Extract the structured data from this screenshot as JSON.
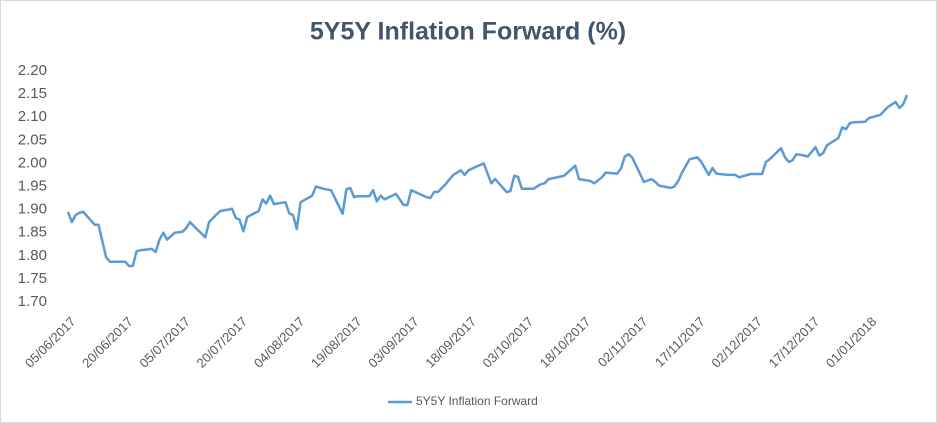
{
  "chart_data": {
    "type": "line",
    "title": "5Y5Y Inflation Forward (%)",
    "x": [
      "05/06/2017",
      "06/06/2017",
      "07/06/2017",
      "08/06/2017",
      "09/06/2017",
      "12/06/2017",
      "13/06/2017",
      "15/06/2017",
      "16/06/2017",
      "20/06/2017",
      "21/06/2017",
      "22/06/2017",
      "23/06/2017",
      "24/06/2017",
      "27/06/2017",
      "28/06/2017",
      "29/06/2017",
      "30/06/2017",
      "01/07/2017",
      "03/07/2017",
      "05/07/2017",
      "06/07/2017",
      "07/07/2017",
      "09/07/2017",
      "11/07/2017",
      "12/07/2017",
      "14/07/2017",
      "15/07/2017",
      "17/07/2017",
      "18/07/2017",
      "19/07/2017",
      "20/07/2017",
      "21/07/2017",
      "22/07/2017",
      "25/07/2017",
      "26/07/2017",
      "27/07/2017",
      "28/07/2017",
      "29/07/2017",
      "01/08/2017",
      "02/08/2017",
      "03/08/2017",
      "04/08/2017",
      "05/08/2017",
      "08/08/2017",
      "09/08/2017",
      "11/08/2017",
      "13/08/2017",
      "16/08/2017",
      "17/08/2017",
      "18/08/2017",
      "19/08/2017",
      "20/08/2017",
      "23/08/2017",
      "24/08/2017",
      "25/08/2017",
      "26/08/2017",
      "27/08/2017",
      "30/08/2017",
      "01/09/2017",
      "02/09/2017",
      "03/09/2017",
      "07/09/2017",
      "08/09/2017",
      "09/09/2017",
      "10/09/2017",
      "12/09/2017",
      "14/09/2017",
      "16/09/2017",
      "17/09/2017",
      "18/09/2017",
      "22/09/2017",
      "24/09/2017",
      "25/09/2017",
      "28/09/2017",
      "29/09/2017",
      "30/09/2017",
      "01/10/2017",
      "02/10/2017",
      "05/10/2017",
      "07/10/2017",
      "08/10/2017",
      "09/10/2017",
      "13/10/2017",
      "14/10/2017",
      "16/10/2017",
      "17/10/2017",
      "20/10/2017",
      "21/10/2017",
      "23/10/2017",
      "24/10/2017",
      "27/10/2017",
      "28/10/2017",
      "29/10/2017",
      "30/10/2017",
      "31/10/2017",
      "03/11/2017",
      "05/11/2017",
      "06/11/2017",
      "07/11/2017",
      "10/11/2017",
      "11/11/2017",
      "12/11/2017",
      "13/11/2017",
      "15/11/2017",
      "17/11/2017",
      "18/11/2017",
      "20/11/2017",
      "21/11/2017",
      "22/11/2017",
      "25/11/2017",
      "27/11/2017",
      "28/11/2017",
      "01/12/2017",
      "04/12/2017",
      "05/12/2017",
      "06/12/2017",
      "09/12/2017",
      "10/12/2017",
      "11/12/2017",
      "12/12/2017",
      "13/12/2017",
      "15/12/2017",
      "16/12/2017",
      "18/12/2017",
      "19/12/2017",
      "20/12/2017",
      "21/12/2017",
      "24/12/2017",
      "25/12/2017",
      "26/12/2017",
      "27/12/2017",
      "28/12/2017",
      "31/12/2017",
      "01/01/2018",
      "04/01/2018",
      "06/01/2018",
      "08/01/2018",
      "09/01/2018",
      "10/01/2018",
      "11/01/2018"
    ],
    "series": [
      {
        "name": "5Y5Y Inflation Forward",
        "color": "#5b9bd5",
        "values": [
          1.895,
          1.873,
          1.888,
          1.893,
          1.895,
          1.867,
          1.867,
          1.797,
          1.787,
          1.787,
          1.778,
          1.778,
          1.81,
          1.812,
          1.815,
          1.808,
          1.835,
          1.85,
          1.835,
          1.85,
          1.852,
          1.86,
          1.873,
          1.856,
          1.84,
          1.873,
          1.89,
          1.897,
          1.9,
          1.902,
          1.882,
          1.878,
          1.853,
          1.884,
          1.897,
          1.922,
          1.913,
          1.93,
          1.912,
          1.916,
          1.892,
          1.888,
          1.858,
          1.916,
          1.93,
          1.95,
          1.945,
          1.942,
          1.891,
          1.944,
          1.947,
          1.927,
          1.929,
          1.929,
          1.942,
          1.918,
          1.93,
          1.922,
          1.934,
          1.91,
          1.91,
          1.942,
          1.927,
          1.925,
          1.938,
          1.938,
          1.955,
          1.975,
          1.985,
          1.975,
          1.985,
          2.0,
          1.957,
          1.966,
          1.938,
          1.94,
          1.973,
          1.971,
          1.945,
          1.945,
          1.955,
          1.957,
          1.966,
          1.973,
          1.98,
          1.995,
          1.966,
          1.962,
          1.957,
          1.97,
          1.98,
          1.978,
          1.989,
          2.015,
          2.02,
          2.012,
          1.96,
          1.966,
          1.96,
          1.952,
          1.947,
          1.95,
          1.962,
          1.98,
          2.009,
          2.013,
          2.004,
          1.975,
          1.99,
          1.978,
          1.975,
          1.975,
          1.97,
          1.977,
          1.977,
          2.003,
          2.009,
          2.033,
          2.013,
          2.003,
          2.007,
          2.02,
          2.017,
          2.015,
          2.035,
          2.017,
          2.022,
          2.039,
          2.055,
          2.078,
          2.074,
          2.087,
          2.089,
          2.09,
          2.098,
          2.105,
          2.122,
          2.133,
          2.12,
          2.128,
          2.148
        ]
      }
    ],
    "xlim": [
      "05/06/2017",
      "11/01/2018"
    ],
    "xticks": [
      "05/06/2017",
      "20/06/2017",
      "05/07/2017",
      "20/07/2017",
      "04/08/2017",
      "19/08/2017",
      "03/09/2017",
      "18/09/2017",
      "03/10/2017",
      "18/10/2017",
      "02/11/2017",
      "17/11/2017",
      "02/12/2017",
      "17/12/2017",
      "01/01/2018"
    ],
    "ylim": [
      1.7,
      2.2
    ],
    "yticks": [
      {
        "value": 1.7,
        "label": "1.70"
      },
      {
        "value": 1.75,
        "label": "1.75"
      },
      {
        "value": 1.8,
        "label": "1.80"
      },
      {
        "value": 1.85,
        "label": "1.85"
      },
      {
        "value": 1.9,
        "label": "1.90"
      },
      {
        "value": 1.95,
        "label": "1.95"
      },
      {
        "value": 2.0,
        "label": "2.00"
      },
      {
        "value": 2.05,
        "label": "2.05"
      },
      {
        "value": 2.1,
        "label": "2.10"
      },
      {
        "value": 2.15,
        "label": "2.15"
      },
      {
        "value": 2.2,
        "label": "2.20"
      }
    ],
    "grid": false,
    "legend": "bottom"
  }
}
